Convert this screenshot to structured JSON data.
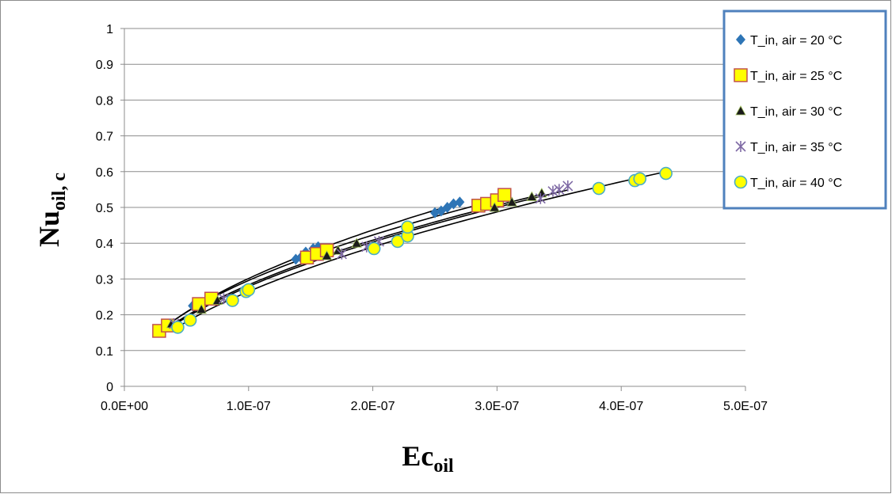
{
  "chart_data": {
    "type": "scatter",
    "xlabel": {
      "main": "Ec",
      "sub": "oil"
    },
    "ylabel": {
      "main": "Nu",
      "sub": "oil, c"
    },
    "xlim": [
      0,
      5e-07
    ],
    "ylim": [
      0,
      1
    ],
    "x_ticks": [
      "0.0E+00",
      "1.0E-07",
      "2.0E-07",
      "3.0E-07",
      "4.0E-07",
      "5.0E-07"
    ],
    "y_ticks": [
      "0",
      "0.1",
      "0.2",
      "0.3",
      "0.4",
      "0.5",
      "0.6",
      "0.7",
      "0.8",
      "0.9",
      "1"
    ],
    "grid": "horizontal",
    "legend_position": "top-right",
    "series": [
      {
        "name": "T_in, air = 20 °C",
        "marker": "diamond",
        "color": "#2e75b6",
        "points": [
          [
            3.5e-08,
            0.17
          ],
          [
            5.5e-08,
            0.225
          ],
          [
            6.2e-08,
            0.23
          ],
          [
            7e-08,
            0.245
          ],
          [
            1.38e-07,
            0.355
          ],
          [
            1.42e-07,
            0.36
          ],
          [
            1.46e-07,
            0.375
          ],
          [
            1.52e-07,
            0.385
          ],
          [
            1.56e-07,
            0.39
          ],
          [
            2.5e-07,
            0.485
          ],
          [
            2.55e-07,
            0.49
          ],
          [
            2.6e-07,
            0.5
          ],
          [
            2.65e-07,
            0.51
          ],
          [
            2.7e-07,
            0.515
          ]
        ]
      },
      {
        "name": "T_in, air = 25 °C",
        "marker": "square",
        "color": "#ffff00",
        "stroke": "#c0504d",
        "points": [
          [
            2.8e-08,
            0.155
          ],
          [
            3.5e-08,
            0.17
          ],
          [
            6e-08,
            0.23
          ],
          [
            7e-08,
            0.245
          ],
          [
            1.47e-07,
            0.36
          ],
          [
            1.55e-07,
            0.37
          ],
          [
            1.63e-07,
            0.38
          ],
          [
            2.85e-07,
            0.505
          ],
          [
            2.92e-07,
            0.51
          ],
          [
            3e-07,
            0.52
          ],
          [
            3.06e-07,
            0.535
          ]
        ]
      },
      {
        "name": "T_in, air = 30 °C",
        "marker": "triangle",
        "color": "#1a1a1a",
        "points": [
          [
            3.8e-08,
            0.175
          ],
          [
            6.2e-08,
            0.215
          ],
          [
            7.5e-08,
            0.24
          ],
          [
            1.63e-07,
            0.365
          ],
          [
            1.72e-07,
            0.38
          ],
          [
            1.87e-07,
            0.4
          ],
          [
            2.98e-07,
            0.5
          ],
          [
            3.12e-07,
            0.515
          ],
          [
            3.28e-07,
            0.53
          ],
          [
            3.36e-07,
            0.54
          ]
        ]
      },
      {
        "name": "T_in, air = 35 °C",
        "marker": "star",
        "color": "#7f6aa5",
        "points": [
          [
            4e-08,
            0.175
          ],
          [
            8e-08,
            0.245
          ],
          [
            1.75e-07,
            0.37
          ],
          [
            1.95e-07,
            0.39
          ],
          [
            2.05e-07,
            0.405
          ],
          [
            3.35e-07,
            0.525
          ],
          [
            3.45e-07,
            0.545
          ],
          [
            3.5e-07,
            0.55
          ],
          [
            3.57e-07,
            0.56
          ]
        ]
      },
      {
        "name": "T_in, air = 40 °C",
        "marker": "circle",
        "color": "#ffff00",
        "stroke": "#4bacc6",
        "points": [
          [
            4.3e-08,
            0.165
          ],
          [
            5.3e-08,
            0.185
          ],
          [
            8.7e-08,
            0.24
          ],
          [
            9.8e-08,
            0.265
          ],
          [
            1e-07,
            0.27
          ],
          [
            2.01e-07,
            0.385
          ],
          [
            2.2e-07,
            0.405
          ],
          [
            2.28e-07,
            0.42
          ],
          [
            2.28e-07,
            0.445
          ],
          [
            3.82e-07,
            0.553
          ],
          [
            4.11e-07,
            0.575
          ],
          [
            4.15e-07,
            0.58
          ],
          [
            4.36e-07,
            0.595
          ]
        ]
      }
    ]
  }
}
